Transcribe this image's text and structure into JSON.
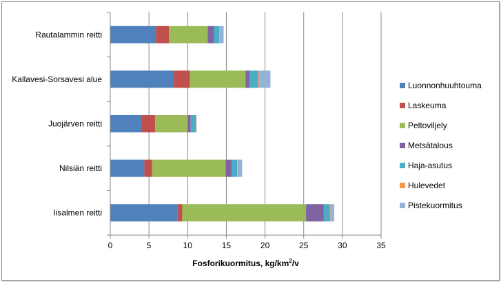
{
  "chart_data": {
    "type": "bar",
    "orientation": "horizontal",
    "stacked": true,
    "categories": [
      "Rautalammin reitti",
      "Kallavesi-Sorsavesi alue",
      "Juojärven reitti",
      "Nilsiän reitti",
      "Iisalmen reitti"
    ],
    "series": [
      {
        "name": "Luonnonhuuhtouma",
        "color": "#4f81bd",
        "values": [
          5.9,
          8.2,
          4.0,
          4.4,
          8.7
        ]
      },
      {
        "name": "Laskeuma",
        "color": "#c0504d",
        "values": [
          1.7,
          2.1,
          1.8,
          1.0,
          0.6
        ]
      },
      {
        "name": "Peltoviljely",
        "color": "#9bbb59",
        "values": [
          5.0,
          7.2,
          4.2,
          9.5,
          16.0
        ]
      },
      {
        "name": "Metsätalous",
        "color": "#8064a2",
        "values": [
          0.8,
          0.5,
          0.4,
          0.8,
          2.3
        ]
      },
      {
        "name": "Haja-asutus",
        "color": "#4bacc6",
        "values": [
          0.7,
          1.1,
          0.7,
          0.7,
          0.8
        ]
      },
      {
        "name": "Hulevedet",
        "color": "#f79646",
        "values": [
          0.05,
          0.1,
          0.05,
          0.05,
          0.05
        ]
      },
      {
        "name": "Pistekuormitus",
        "color": "#95b3d7",
        "values": [
          0.5,
          1.5,
          0.0,
          0.6,
          0.5
        ]
      }
    ],
    "xlabel_main": "Fosforikuormitus, kg/km",
    "xlabel_sup": "2",
    "xlabel_tail": "/v",
    "xlim": [
      0,
      35
    ],
    "xticks": [
      "0",
      "5",
      "10",
      "15",
      "20",
      "25",
      "30",
      "35"
    ],
    "grid": "vertical",
    "legend_position": "right"
  }
}
